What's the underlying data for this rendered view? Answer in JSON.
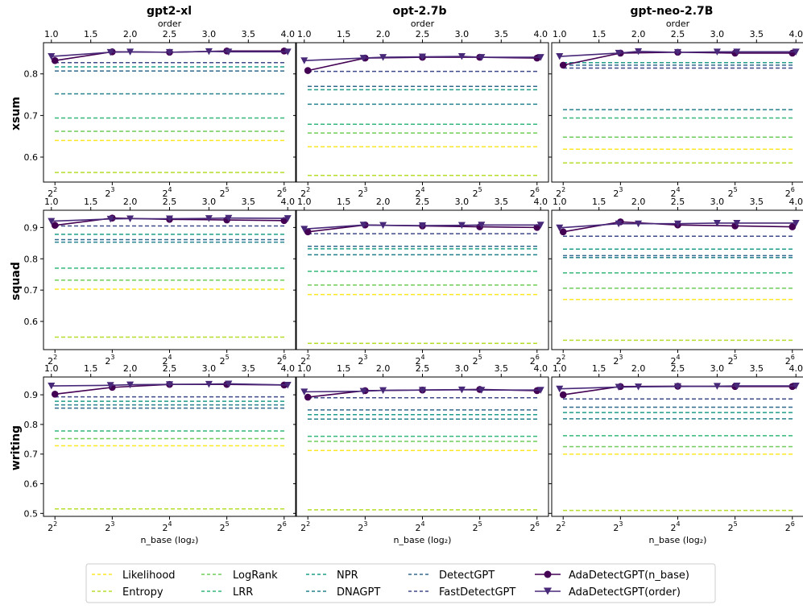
{
  "figure": {
    "columns": [
      "gpt2-xl",
      "opt-2.7b",
      "gpt-neo-2.7B"
    ],
    "rows": [
      "xsum",
      "squad",
      "writing"
    ],
    "x_label": "n_base (log₂)",
    "top_axis_label": "order",
    "x_ticks_bottom": [
      "2",
      "3",
      "4",
      "5",
      "6"
    ],
    "x_ticks_base": "2",
    "x_ticks_top": [
      "1.0",
      "1.5",
      "2.0",
      "2.5",
      "3.0",
      "3.5",
      "4.0"
    ],
    "y_ticks": {
      "xsum": [
        "0.6",
        "0.7",
        "0.8"
      ],
      "squad": [
        "0.6",
        "0.7",
        "0.8",
        "0.9"
      ],
      "writing": [
        "0.5",
        "0.6",
        "0.7",
        "0.8",
        "0.9"
      ]
    }
  },
  "legend": {
    "items": [
      {
        "label": "Likelihood",
        "color": "#fde725",
        "style": "dashed"
      },
      {
        "label": "Entropy",
        "color": "#b5de2b",
        "style": "dashed"
      },
      {
        "label": "LogRank",
        "color": "#6ece58",
        "style": "dashed"
      },
      {
        "label": "LRR",
        "color": "#35b779",
        "style": "dashed"
      },
      {
        "label": "NPR",
        "color": "#1f9e89",
        "style": "dashed"
      },
      {
        "label": "DNAGPT",
        "color": "#26828e",
        "style": "dashed"
      },
      {
        "label": "DetectGPT",
        "color": "#31688e",
        "style": "dashed"
      },
      {
        "label": "FastDetectGPT",
        "color": "#3e4a89",
        "style": "dashed"
      },
      {
        "label": "AdaDetectGPT(n_base)",
        "color": "#440154",
        "style": "solid",
        "marker": "circle"
      },
      {
        "label": "AdaDetectGPT(order)",
        "color": "#482878",
        "style": "solid",
        "marker": "triangle-down"
      }
    ]
  },
  "chart_data": {
    "type": "line",
    "layout": "grid 3 rows x 3 columns",
    "x_bottom": {
      "label": "n_base (log₂)",
      "values": [
        4,
        8,
        16,
        32,
        64
      ],
      "log2_range": [
        1.8,
        6.2
      ]
    },
    "x_top": {
      "label": "order",
      "values": [
        1.0,
        1.75,
        2.0,
        2.5,
        3.0,
        3.25,
        4.0
      ],
      "range": [
        0.9,
        4.1
      ]
    },
    "baseline_order": [
      "Likelihood",
      "Entropy",
      "LogRank",
      "LRR",
      "NPR",
      "DNAGPT",
      "DetectGPT",
      "FastDetectGPT"
    ],
    "panels": [
      {
        "row": "xsum",
        "column": "gpt2-xl",
        "ylim": [
          0.54,
          0.875
        ],
        "baselines": [
          0.64,
          0.563,
          0.662,
          0.694,
          0.817,
          0.752,
          0.807,
          0.827
        ],
        "n_base": [
          0.832,
          0.853,
          0.852,
          0.855,
          0.855
        ],
        "order": [
          0.842,
          0.852,
          0.853,
          0.852,
          0.854,
          0.853,
          0.853
        ]
      },
      {
        "row": "xsum",
        "column": "opt-2.7b",
        "ylim": [
          0.54,
          0.875
        ],
        "baselines": [
          0.625,
          0.556,
          0.658,
          0.679,
          0.762,
          0.727,
          0.77,
          0.806
        ],
        "n_base": [
          0.808,
          0.838,
          0.84,
          0.84,
          0.838
        ],
        "order": [
          0.832,
          0.838,
          0.84,
          0.841,
          0.842,
          0.84,
          0.84
        ]
      },
      {
        "row": "xsum",
        "column": "gpt-neo-2.7B",
        "ylim": [
          0.54,
          0.875
        ],
        "baselines": [
          0.619,
          0.586,
          0.648,
          0.694,
          0.827,
          0.714,
          0.821,
          0.814
        ],
        "n_base": [
          0.821,
          0.85,
          0.852,
          0.85,
          0.85
        ],
        "order": [
          0.842,
          0.85,
          0.854,
          0.852,
          0.853,
          0.853,
          0.853
        ]
      },
      {
        "row": "squad",
        "column": "gpt2-xl",
        "ylim": [
          0.51,
          0.955
        ],
        "baselines": [
          0.703,
          0.55,
          0.732,
          0.77,
          0.878,
          0.853,
          0.861,
          0.905
        ],
        "n_base": [
          0.907,
          0.93,
          0.926,
          0.924,
          0.922
        ],
        "order": [
          0.92,
          0.927,
          0.928,
          0.928,
          0.929,
          0.93,
          0.929
        ]
      },
      {
        "row": "squad",
        "column": "opt-2.7b",
        "ylim": [
          0.51,
          0.955
        ],
        "baselines": [
          0.686,
          0.53,
          0.716,
          0.76,
          0.832,
          0.813,
          0.84,
          0.88
        ],
        "n_base": [
          0.886,
          0.908,
          0.905,
          0.902,
          0.9
        ],
        "order": [
          0.895,
          0.908,
          0.907,
          0.906,
          0.907,
          0.908,
          0.908
        ]
      },
      {
        "row": "squad",
        "column": "gpt-neo-2.7B",
        "ylim": [
          0.51,
          0.955
        ],
        "baselines": [
          0.67,
          0.54,
          0.706,
          0.755,
          0.831,
          0.804,
          0.81,
          0.872
        ],
        "n_base": [
          0.886,
          0.918,
          0.908,
          0.905,
          0.902
        ],
        "order": [
          0.899,
          0.912,
          0.912,
          0.912,
          0.914,
          0.914,
          0.914
        ]
      },
      {
        "row": "writing",
        "column": "gpt2-xl",
        "ylim": [
          0.49,
          0.96
        ],
        "baselines": [
          0.728,
          0.515,
          0.752,
          0.778,
          0.878,
          0.866,
          0.855,
          0.893
        ],
        "n_base": [
          0.902,
          0.925,
          0.935,
          0.935,
          0.933
        ],
        "order": [
          0.93,
          0.932,
          0.934,
          0.935,
          0.936,
          0.937,
          0.933
        ]
      },
      {
        "row": "writing",
        "column": "opt-2.7b",
        "ylim": [
          0.49,
          0.96
        ],
        "baselines": [
          0.712,
          0.512,
          0.743,
          0.76,
          0.833,
          0.818,
          0.849,
          0.89
        ],
        "n_base": [
          0.892,
          0.914,
          0.916,
          0.918,
          0.914
        ],
        "order": [
          0.91,
          0.912,
          0.915,
          0.916,
          0.917,
          0.916,
          0.916
        ]
      },
      {
        "row": "writing",
        "column": "gpt-neo-2.7B",
        "ylim": [
          0.49,
          0.96
        ],
        "baselines": [
          0.7,
          0.51,
          0.725,
          0.762,
          0.84,
          0.819,
          0.858,
          0.886
        ],
        "n_base": [
          0.9,
          0.928,
          0.929,
          0.928,
          0.928
        ],
        "order": [
          0.92,
          0.926,
          0.927,
          0.928,
          0.929,
          0.93,
          0.93
        ]
      }
    ]
  }
}
